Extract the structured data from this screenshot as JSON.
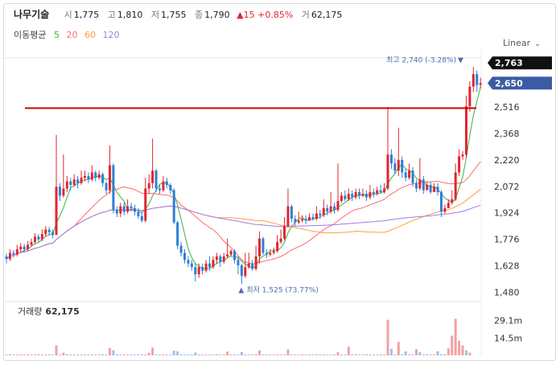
{
  "header": {
    "name": "나무기술",
    "open_label": "시",
    "open": "1,775",
    "high_label": "고",
    "high": "1,810",
    "low_label": "저",
    "low": "1,755",
    "close_label": "종",
    "close": "1,790",
    "change": "▲15 +0.85%",
    "volume_label": "거",
    "volume": "62,175"
  },
  "ma_legend": {
    "label": "이동평균",
    "periods": [
      "5",
      "20",
      "60",
      "120"
    ],
    "colors": [
      "#3cb043",
      "#ff6b6b",
      "#ff9d3b",
      "#9f7be8"
    ]
  },
  "scale_menu": {
    "label": "Linear"
  },
  "volume_panel": {
    "label": "거래량",
    "value": "62,175"
  },
  "colors": {
    "up": "#e0262f",
    "down": "#2f7fd8",
    "current_tag": "#3b5ba5",
    "high_tag": "#111111",
    "hline": "#d00000"
  },
  "chart_data": {
    "type": "candlestick",
    "y_scale": "linear",
    "ylim": [
      1450,
      2800
    ],
    "y_ticks": [
      2516,
      2368,
      2220,
      2072,
      1924,
      1776,
      1628,
      1480
    ],
    "y_tick_labels": [
      "2,516",
      "2,368",
      "2,220",
      "2,072",
      "1,924",
      "1,776",
      "1,628",
      "1,480"
    ],
    "current_price": 2650,
    "current_price_label": "2,650",
    "high_marker_price": 2763,
    "high_marker_label": "2,763",
    "horizontal_line": 2510,
    "annotations": {
      "high": {
        "price": 2740,
        "text": "최고 2,740 (-3.28%)",
        "index": 128
      },
      "low": {
        "price": 1525,
        "text": "최저 1,525 (73.77%)",
        "index": 66
      }
    },
    "volume_ticks": [
      29.1,
      14.5
    ],
    "volume_tick_labels": [
      "29.1m",
      "14.5m"
    ],
    "vol_max": 40,
    "candles": [
      [
        1680,
        1665,
        1695,
        1640
      ],
      [
        1665,
        1700,
        1720,
        1655
      ],
      [
        1700,
        1690,
        1715,
        1675
      ],
      [
        1690,
        1720,
        1745,
        1680
      ],
      [
        1720,
        1735,
        1755,
        1700
      ],
      [
        1735,
        1720,
        1750,
        1705
      ],
      [
        1720,
        1745,
        1765,
        1710
      ],
      [
        1745,
        1760,
        1780,
        1735
      ],
      [
        1760,
        1790,
        1810,
        1750
      ],
      [
        1790,
        1775,
        1805,
        1760
      ],
      [
        1775,
        1805,
        1830,
        1765
      ],
      [
        1805,
        1830,
        1850,
        1790
      ],
      [
        1830,
        1815,
        1845,
        1795
      ],
      [
        1815,
        1800,
        1830,
        1780
      ],
      [
        1800,
        2070,
        2360,
        1800
      ],
      [
        2070,
        2020,
        2090,
        1990
      ],
      [
        2020,
        2060,
        2250,
        2010
      ],
      [
        2060,
        2100,
        2130,
        2040
      ],
      [
        2100,
        2080,
        2120,
        2050
      ],
      [
        2080,
        2110,
        2140,
        2070
      ],
      [
        2110,
        2090,
        2130,
        2060
      ],
      [
        2090,
        2120,
        2160,
        2080
      ],
      [
        2120,
        2130,
        2160,
        2100
      ],
      [
        2130,
        2110,
        2150,
        2090
      ],
      [
        2110,
        2150,
        2190,
        2100
      ],
      [
        2150,
        2120,
        2160,
        2100
      ],
      [
        2120,
        2140,
        2160,
        2110
      ],
      [
        2140,
        2090,
        2150,
        2070
      ],
      [
        2090,
        2050,
        2100,
        2030
      ],
      [
        2050,
        2190,
        2300,
        2030
      ],
      [
        2190,
        1940,
        2200,
        1920
      ],
      [
        1940,
        1920,
        1960,
        1900
      ],
      [
        1920,
        1960,
        1980,
        1900
      ],
      [
        1960,
        1930,
        1980,
        1910
      ],
      [
        1930,
        1960,
        2000,
        1920
      ],
      [
        1960,
        1950,
        1980,
        1930
      ],
      [
        1950,
        1930,
        1970,
        1910
      ],
      [
        1930,
        1905,
        1950,
        1890
      ],
      [
        1905,
        1880,
        1930,
        1870
      ],
      [
        1880,
        2060,
        2120,
        1870
      ],
      [
        2060,
        2090,
        2140,
        2030
      ],
      [
        2090,
        2160,
        2340,
        2060
      ],
      [
        2160,
        2060,
        2170,
        2040
      ],
      [
        2060,
        2050,
        2080,
        2030
      ],
      [
        2050,
        2100,
        2130,
        2040
      ],
      [
        2100,
        2080,
        2120,
        2060
      ],
      [
        2080,
        2050,
        2090,
        2030
      ],
      [
        2050,
        1870,
        2060,
        1860
      ],
      [
        1870,
        1740,
        1880,
        1720
      ],
      [
        1740,
        1700,
        1760,
        1680
      ],
      [
        1700,
        1660,
        1720,
        1640
      ],
      [
        1660,
        1640,
        1680,
        1620
      ],
      [
        1640,
        1620,
        1660,
        1600
      ],
      [
        1620,
        1580,
        1640,
        1540
      ],
      [
        1580,
        1620,
        1640,
        1560
      ],
      [
        1620,
        1600,
        1640,
        1580
      ],
      [
        1600,
        1640,
        1660,
        1590
      ],
      [
        1640,
        1620,
        1680,
        1600
      ],
      [
        1620,
        1660,
        1680,
        1610
      ],
      [
        1660,
        1680,
        1700,
        1640
      ],
      [
        1680,
        1650,
        1690,
        1620
      ],
      [
        1650,
        1680,
        1700,
        1640
      ],
      [
        1680,
        1690,
        1780,
        1670
      ],
      [
        1690,
        1710,
        1720,
        1680
      ],
      [
        1710,
        1660,
        1720,
        1640
      ],
      [
        1660,
        1630,
        1680,
        1580
      ],
      [
        1630,
        1570,
        1640,
        1525
      ],
      [
        1570,
        1620,
        1700,
        1560
      ],
      [
        1620,
        1640,
        1700,
        1610
      ],
      [
        1640,
        1610,
        1660,
        1600
      ],
      [
        1610,
        1680,
        1740,
        1600
      ],
      [
        1680,
        1780,
        1820,
        1640
      ],
      [
        1780,
        1700,
        1790,
        1690
      ],
      [
        1700,
        1690,
        1720,
        1670
      ],
      [
        1690,
        1700,
        1720,
        1680
      ],
      [
        1700,
        1710,
        1730,
        1690
      ],
      [
        1710,
        1760,
        1800,
        1700
      ],
      [
        1760,
        1780,
        1830,
        1750
      ],
      [
        1780,
        1850,
        1900,
        1770
      ],
      [
        1850,
        1960,
        2060,
        1840
      ],
      [
        1960,
        1890,
        1970,
        1870
      ],
      [
        1890,
        1870,
        1910,
        1850
      ],
      [
        1870,
        1880,
        1930,
        1860
      ],
      [
        1880,
        1890,
        1910,
        1870
      ],
      [
        1890,
        1880,
        1910,
        1860
      ],
      [
        1880,
        1900,
        1920,
        1880
      ],
      [
        1900,
        1890,
        1920,
        1880
      ],
      [
        1890,
        1920,
        1960,
        1880
      ],
      [
        1920,
        1910,
        1940,
        1890
      ],
      [
        1910,
        1950,
        2000,
        1900
      ],
      [
        1950,
        1930,
        1970,
        1910
      ],
      [
        1930,
        1960,
        2040,
        1920
      ],
      [
        1960,
        1940,
        1980,
        1920
      ],
      [
        1940,
        1990,
        2200,
        1930
      ],
      [
        1990,
        2020,
        2040,
        1980
      ],
      [
        2020,
        2000,
        2050,
        1990
      ],
      [
        2000,
        2030,
        2060,
        1990
      ],
      [
        2030,
        2010,
        2050,
        1990
      ],
      [
        2010,
        2040,
        2060,
        2000
      ],
      [
        2040,
        2020,
        2060,
        2000
      ],
      [
        2020,
        2030,
        2060,
        2010
      ],
      [
        2030,
        2010,
        2050,
        1990
      ],
      [
        2010,
        2040,
        2080,
        2000
      ],
      [
        2040,
        2030,
        2060,
        2010
      ],
      [
        2030,
        2050,
        2070,
        2020
      ],
      [
        2050,
        2040,
        2080,
        2030
      ],
      [
        2040,
        2060,
        2090,
        2030
      ],
      [
        2060,
        2250,
        2516,
        2050
      ],
      [
        2250,
        2200,
        2280,
        2170
      ],
      [
        2200,
        2160,
        2230,
        2140
      ],
      [
        2160,
        2220,
        2400,
        2130
      ],
      [
        2220,
        2150,
        2240,
        2120
      ],
      [
        2150,
        2120,
        2170,
        2100
      ],
      [
        2120,
        2160,
        2200,
        2110
      ],
      [
        2160,
        2090,
        2180,
        2070
      ],
      [
        2090,
        2060,
        2110,
        2040
      ],
      [
        2060,
        2110,
        2230,
        2050
      ],
      [
        2110,
        2050,
        2130,
        2030
      ],
      [
        2050,
        2080,
        2100,
        2060
      ],
      [
        2080,
        2040,
        2100,
        2030
      ],
      [
        2040,
        2070,
        2090,
        2050
      ],
      [
        2070,
        2040,
        2090,
        2020
      ],
      [
        2040,
        1930,
        2050,
        1900
      ],
      [
        1930,
        1950,
        1970,
        1920
      ],
      [
        1950,
        1980,
        2000,
        1960
      ],
      [
        1980,
        2000,
        2050,
        1970
      ],
      [
        2000,
        2150,
        2200,
        1990
      ],
      [
        2150,
        2240,
        2280,
        2130
      ],
      [
        2240,
        2250,
        2270,
        2220
      ],
      [
        2250,
        2520,
        2580,
        2230
      ],
      [
        2520,
        2630,
        2660,
        2490
      ],
      [
        2630,
        2700,
        2740,
        2600
      ],
      [
        2700,
        2640,
        2720,
        2600
      ],
      [
        2640,
        2650,
        2680,
        2620
      ]
    ],
    "volume": [
      {
        "index": 14,
        "value": 8.3,
        "up": true
      },
      {
        "index": 16,
        "value": 2.2,
        "up": true
      },
      {
        "index": 29,
        "value": 6.1,
        "up": true
      },
      {
        "index": 30,
        "value": 4.2,
        "up": false
      },
      {
        "index": 40,
        "value": 2.1,
        "up": true
      },
      {
        "index": 41,
        "value": 6.4,
        "up": true
      },
      {
        "index": 47,
        "value": 3.9,
        "up": false
      },
      {
        "index": 48,
        "value": 3.3,
        "up": false
      },
      {
        "index": 53,
        "value": 2.4,
        "up": false
      },
      {
        "index": 62,
        "value": 3.1,
        "up": true
      },
      {
        "index": 66,
        "value": 2.8,
        "up": false
      },
      {
        "index": 71,
        "value": 4.0,
        "up": true
      },
      {
        "index": 79,
        "value": 4.8,
        "up": true
      },
      {
        "index": 93,
        "value": 2.6,
        "up": true
      },
      {
        "index": 96,
        "value": 7.2,
        "up": true
      },
      {
        "index": 107,
        "value": 29.5,
        "up": true
      },
      {
        "index": 108,
        "value": 5.4,
        "up": false
      },
      {
        "index": 110,
        "value": 11.2,
        "up": true
      },
      {
        "index": 112,
        "value": 3.3,
        "up": false
      },
      {
        "index": 115,
        "value": 5.1,
        "up": true
      },
      {
        "index": 116,
        "value": 2.6,
        "up": false
      },
      {
        "index": 121,
        "value": 3.4,
        "up": false
      },
      {
        "index": 124,
        "value": 5.8,
        "up": true
      },
      {
        "index": 125,
        "value": 16.3,
        "up": true
      },
      {
        "index": 126,
        "value": 30.4,
        "up": true
      },
      {
        "index": 127,
        "value": 12.2,
        "up": true
      },
      {
        "index": 128,
        "value": 8.2,
        "up": true
      },
      {
        "index": 129,
        "value": 4.1,
        "up": false
      },
      {
        "index": 130,
        "value": 2.3,
        "up": true
      }
    ],
    "volume_noise": [
      0.5,
      0.9,
      0.4,
      0.7,
      0.3,
      0.6,
      0.8,
      0.5,
      0.4,
      0.9,
      0.6,
      0.3,
      0.7,
      0.5,
      0,
      0.6,
      0,
      1.0,
      0.4,
      0.7,
      0.5,
      0.6,
      0.3,
      0.8,
      0.4,
      0.7,
      0.5,
      0.9,
      0.6,
      0,
      0,
      0.8,
      0.5,
      0.7,
      0.4,
      0.6,
      0.5,
      0.9,
      0.7,
      0.6,
      0,
      0,
      0.8,
      0.5,
      0.6,
      0.4,
      0.7,
      0,
      0,
      0.9,
      0.6,
      0.7,
      0.5,
      0,
      0.8,
      0.6,
      0.5,
      0.7,
      0.4,
      0.9,
      0.6,
      0.5,
      0,
      0.7,
      0.8,
      0.5,
      0,
      0.6,
      0.7,
      0.4,
      0.9,
      0,
      0.5,
      0.6,
      0.7,
      0.4,
      0.8,
      0.5,
      0.6,
      0,
      0.7,
      0.5,
      0.6,
      0.8,
      0.4,
      0.7,
      0.5,
      0.9,
      0.6,
      0.7,
      0.5,
      0.6,
      0.8,
      0,
      0.7,
      0.5,
      0,
      0.6,
      0.8,
      0.7,
      0.5,
      0.9,
      0.6,
      0.7,
      0.4,
      0.8,
      0.6,
      0,
      0,
      0.7,
      0,
      0.8,
      0,
      0.6,
      0.7,
      0,
      0,
      0.5,
      0.9,
      0.6,
      0.7,
      0,
      0.8,
      0.9,
      0,
      0,
      0,
      0,
      0,
      0,
      0
    ]
  }
}
